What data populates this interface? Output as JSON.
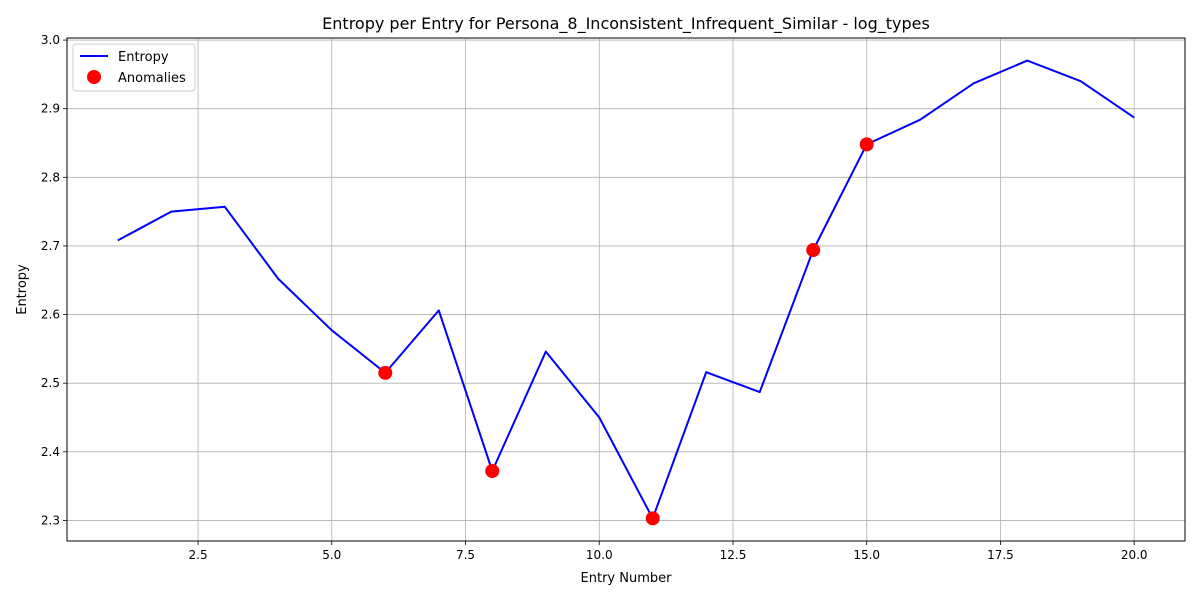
{
  "chart_data": {
    "type": "line",
    "title": "Entropy per Entry for Persona_8_Inconsistent_Infrequent_Similar - log_types",
    "xlabel": "Entry Number",
    "ylabel": "Entropy",
    "xlim": [
      0.05,
      20.95
    ],
    "ylim": [
      2.27,
      3.003
    ],
    "xticks": [
      2.5,
      5.0,
      7.5,
      10.0,
      12.5,
      15.0,
      17.5,
      20.0
    ],
    "xtick_labels": [
      "2.5",
      "5.0",
      "7.5",
      "10.0",
      "12.5",
      "15.0",
      "17.5",
      "20.0"
    ],
    "yticks": [
      2.3,
      2.4,
      2.5,
      2.6,
      2.7,
      2.8,
      2.9,
      3.0
    ],
    "ytick_labels": [
      "2.3",
      "2.4",
      "2.5",
      "2.6",
      "2.7",
      "2.8",
      "2.9",
      "3.0"
    ],
    "grid": true,
    "legend_position": "top-left",
    "series": [
      {
        "name": "Entropy",
        "kind": "line",
        "color": "#0000ff",
        "x": [
          1,
          2,
          3,
          4,
          5,
          6,
          7,
          8,
          9,
          10,
          11,
          12,
          13,
          14,
          15,
          16,
          17,
          18,
          19,
          20
        ],
        "y": [
          2.708,
          2.75,
          2.757,
          2.652,
          2.577,
          2.515,
          2.606,
          2.372,
          2.546,
          2.45,
          2.303,
          2.516,
          2.487,
          2.694,
          2.848,
          2.884,
          2.937,
          2.97,
          2.94,
          2.887
        ]
      },
      {
        "name": "Anomalies",
        "kind": "scatter",
        "color": "#ff0000",
        "x": [
          6,
          8,
          11,
          14,
          15
        ],
        "y": [
          2.515,
          2.372,
          2.303,
          2.694,
          2.848
        ]
      }
    ]
  }
}
